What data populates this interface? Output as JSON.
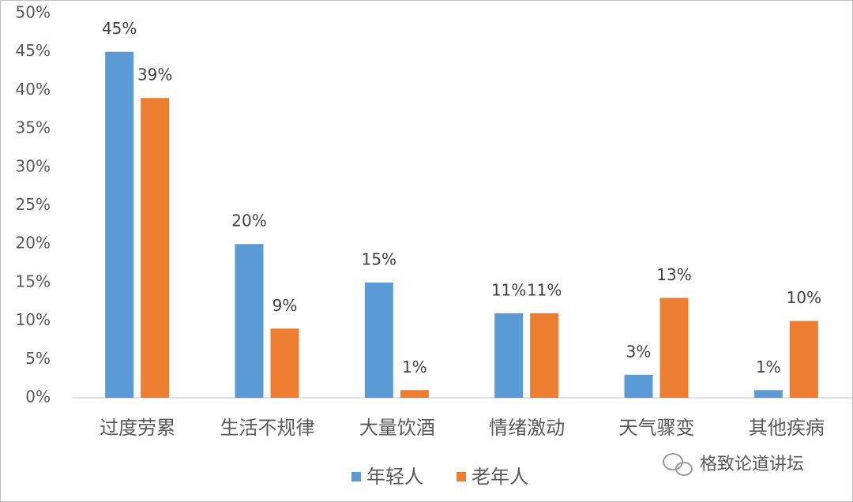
{
  "chart_data": {
    "type": "bar",
    "categories": [
      "过度劳累",
      "生活不规律",
      "大量饮酒",
      "情绪激动",
      "天气骤变",
      "其他疾病"
    ],
    "series": [
      {
        "name": "年轻人",
        "color": "#5b9bd5",
        "values": [
          45,
          20,
          15,
          11,
          3,
          1
        ],
        "value_labels": [
          "45%",
          "20%",
          "15%",
          "11%",
          "3%",
          "1%"
        ]
      },
      {
        "name": "老年人",
        "color": "#ed7d31",
        "values": [
          39,
          9,
          1,
          11,
          13,
          10
        ],
        "value_labels": [
          "39%",
          "9%",
          "1%",
          "11%",
          "13%",
          "10%"
        ]
      }
    ],
    "ylim": [
      0,
      50
    ],
    "yticks": [
      {
        "value": 0,
        "label": "0%"
      },
      {
        "value": 5,
        "label": "5%"
      },
      {
        "value": 10,
        "label": "10%"
      },
      {
        "value": 15,
        "label": "15%"
      },
      {
        "value": 20,
        "label": "20%"
      },
      {
        "value": 25,
        "label": "25%"
      },
      {
        "value": 30,
        "label": "30%"
      },
      {
        "value": 35,
        "label": "35%"
      },
      {
        "value": 40,
        "label": "40%"
      },
      {
        "value": 45,
        "label": "45%"
      },
      {
        "value": 50,
        "label": "50%"
      }
    ],
    "grid": false,
    "legend": "bottom",
    "watermark": "格致论道讲坛"
  }
}
